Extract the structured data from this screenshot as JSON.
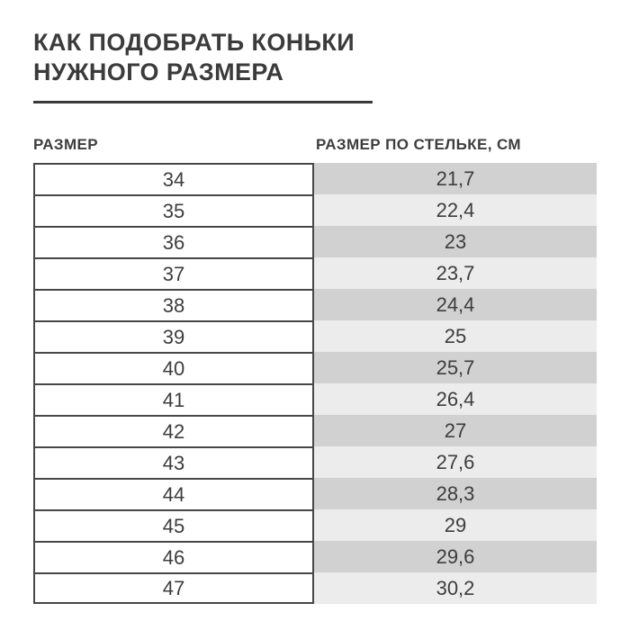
{
  "header": {
    "title_line1": "КАК ПОДОБРАТЬ КОНЬКИ",
    "title_line2": "НУЖНОГО РАЗМЕРА"
  },
  "table": {
    "column_headers": [
      "РАЗМЕР",
      "РАЗМЕР ПО СТЕЛЬКЕ, СМ"
    ]
  },
  "chart_data": {
    "type": "table",
    "title": "КАК ПОДОБРАТЬ КОНЬКИ НУЖНОГО РАЗМЕРА",
    "columns": [
      "РАЗМЕР",
      "РАЗМЕР ПО СТЕЛЬКЕ, СМ"
    ],
    "rows": [
      {
        "size": "34",
        "insole_cm": "21,7"
      },
      {
        "size": "35",
        "insole_cm": "22,4"
      },
      {
        "size": "36",
        "insole_cm": "23"
      },
      {
        "size": "37",
        "insole_cm": "23,7"
      },
      {
        "size": "38",
        "insole_cm": "24,4"
      },
      {
        "size": "39",
        "insole_cm": "25"
      },
      {
        "size": "40",
        "insole_cm": "25,7"
      },
      {
        "size": "41",
        "insole_cm": "26,4"
      },
      {
        "size": "42",
        "insole_cm": "27"
      },
      {
        "size": "43",
        "insole_cm": "27,6"
      },
      {
        "size": "44",
        "insole_cm": "28,3"
      },
      {
        "size": "45",
        "insole_cm": "29"
      },
      {
        "size": "46",
        "insole_cm": "29,6"
      },
      {
        "size": "47",
        "insole_cm": "30,2"
      }
    ],
    "layout": {
      "left_column_style": "white cells with dark borders",
      "right_column_style": "alternating gray bands, no borders",
      "decimal_separator": ","
    }
  },
  "colors": {
    "title_text": "#3b3b3b",
    "body_text": "#3d3d3d",
    "table_border": "#474747",
    "row_band_dark": "#d1d1d1",
    "row_band_light": "#ececec",
    "background": "#ffffff"
  }
}
